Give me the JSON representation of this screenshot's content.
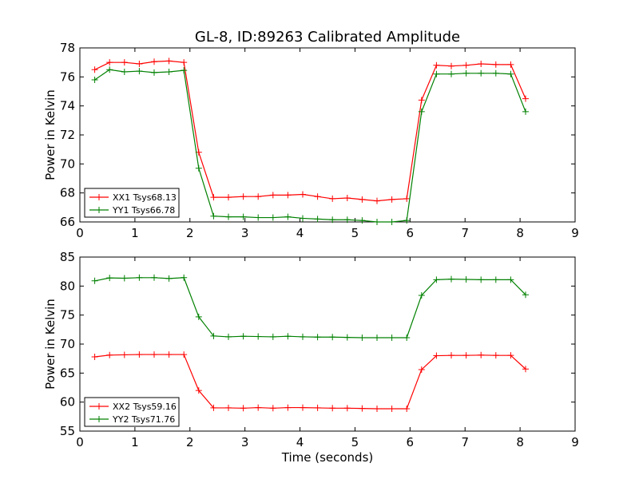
{
  "figure_title": "GL-8, ID:89263 Calibrated Amplitude",
  "chart_data": [
    {
      "type": "line",
      "title": "",
      "xlabel": "",
      "ylabel": "Power in Kelvin",
      "xlim": [
        0,
        9
      ],
      "ylim": [
        66,
        78
      ],
      "xticks": [
        "0",
        "1",
        "2",
        "3",
        "4",
        "5",
        "6",
        "7",
        "8",
        "9"
      ],
      "yticks": [
        "66",
        "68",
        "70",
        "72",
        "74",
        "76",
        "78"
      ],
      "grid": false,
      "legend_position": "lower-left",
      "x": [
        0.27,
        0.54,
        0.81,
        1.08,
        1.35,
        1.62,
        1.89,
        2.16,
        2.43,
        2.7,
        2.97,
        3.24,
        3.51,
        3.78,
        4.05,
        4.32,
        4.59,
        4.86,
        5.13,
        5.4,
        5.67,
        5.94,
        6.21,
        6.48,
        6.75,
        7.02,
        7.29,
        7.56,
        7.83,
        8.1
      ],
      "series": [
        {
          "name": "XX1 Tsys68.13",
          "color": "#ff0000",
          "values": [
            76.5,
            77.0,
            77.0,
            76.9,
            77.05,
            77.1,
            77.0,
            70.8,
            67.7,
            67.7,
            67.75,
            67.75,
            67.85,
            67.85,
            67.9,
            67.75,
            67.6,
            67.65,
            67.55,
            67.45,
            67.55,
            67.6,
            74.4,
            76.8,
            76.75,
            76.8,
            76.9,
            76.85,
            76.85,
            74.5
          ]
        },
        {
          "name": "YY1 Tsys66.78",
          "color": "#008000",
          "values": [
            75.8,
            76.5,
            76.35,
            76.4,
            76.3,
            76.35,
            76.45,
            69.7,
            66.4,
            66.35,
            66.35,
            66.3,
            66.3,
            66.35,
            66.25,
            66.2,
            66.15,
            66.15,
            66.1,
            66.0,
            66.0,
            66.1,
            73.6,
            76.2,
            76.2,
            76.25,
            76.25,
            76.25,
            76.2,
            73.6
          ]
        }
      ]
    },
    {
      "type": "line",
      "title": "",
      "xlabel": "Time (seconds)",
      "ylabel": "Power in Kelvin",
      "xlim": [
        0,
        9
      ],
      "ylim": [
        55,
        85
      ],
      "xticks": [
        "0",
        "1",
        "2",
        "3",
        "4",
        "5",
        "6",
        "7",
        "8",
        "9"
      ],
      "yticks": [
        "55",
        "60",
        "65",
        "70",
        "75",
        "80",
        "85"
      ],
      "grid": false,
      "legend_position": "lower-left",
      "x": [
        0.27,
        0.54,
        0.81,
        1.08,
        1.35,
        1.62,
        1.89,
        2.16,
        2.43,
        2.7,
        2.97,
        3.24,
        3.51,
        3.78,
        4.05,
        4.32,
        4.59,
        4.86,
        5.13,
        5.4,
        5.67,
        5.94,
        6.21,
        6.48,
        6.75,
        7.02,
        7.29,
        7.56,
        7.83,
        8.1
      ],
      "series": [
        {
          "name": "XX2 Tsys59.16",
          "color": "#ff0000",
          "values": [
            67.8,
            68.1,
            68.15,
            68.2,
            68.2,
            68.2,
            68.2,
            62.0,
            59.0,
            59.0,
            58.95,
            59.05,
            58.95,
            59.05,
            59.05,
            59.0,
            58.95,
            58.95,
            58.9,
            58.85,
            58.85,
            58.85,
            65.6,
            68.0,
            68.05,
            68.05,
            68.1,
            68.05,
            68.05,
            65.7
          ]
        },
        {
          "name": "YY2 Tsys71.76",
          "color": "#008000",
          "values": [
            80.9,
            81.4,
            81.35,
            81.45,
            81.45,
            81.3,
            81.45,
            74.7,
            71.4,
            71.25,
            71.35,
            71.3,
            71.25,
            71.35,
            71.25,
            71.2,
            71.2,
            71.15,
            71.1,
            71.1,
            71.1,
            71.1,
            78.4,
            81.1,
            81.2,
            81.15,
            81.1,
            81.1,
            81.1,
            78.5
          ]
        }
      ]
    }
  ]
}
